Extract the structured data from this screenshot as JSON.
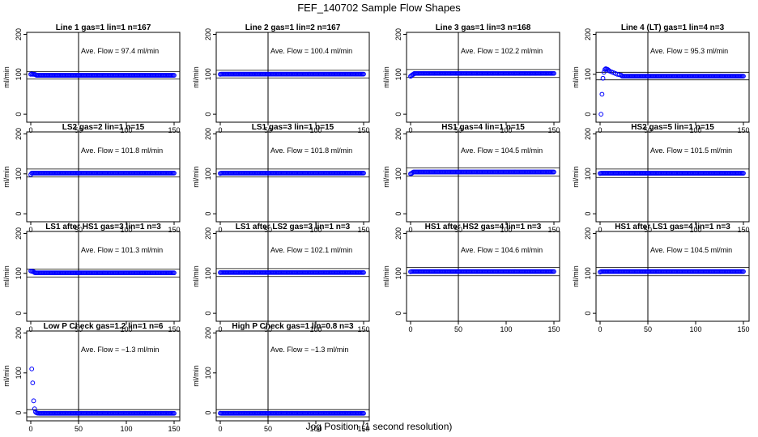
{
  "figure": {
    "title": "FEF_140702  Sample Flow Shapes",
    "xlabel": "Jog Position (1 second resolution)",
    "point_color": "#0000ff"
  },
  "chart_data": [
    {
      "type": "scatter",
      "title": "Line 1 gas=1 lin=1 n=167",
      "ylabel": "ml/min",
      "annotation": "Ave. Flow = 97.4  ml/min",
      "xlim": [
        0,
        150
      ],
      "ylim": [
        -20,
        205
      ],
      "xticks": [
        0,
        50,
        100,
        150
      ],
      "yticks": [
        0,
        100,
        200
      ],
      "ref_hline": [
        88,
        107
      ],
      "ref_vline": 50,
      "shape": "flat",
      "level": 97.4,
      "points": [
        [
          0,
          100
        ],
        [
          1,
          101
        ],
        [
          2,
          100
        ],
        [
          3,
          100
        ],
        [
          4,
          100
        ],
        [
          5,
          99
        ],
        [
          150,
          97
        ]
      ]
    },
    {
      "type": "scatter",
      "title": "Line 2 gas=1 lin=2 n=167",
      "ylabel": "ml/min",
      "annotation": "Ave. Flow = 100.4  ml/min",
      "xlim": [
        0,
        150
      ],
      "ylim": [
        -20,
        205
      ],
      "xticks": [
        0,
        50,
        100,
        150
      ],
      "yticks": [
        0,
        100,
        200
      ],
      "ref_hline": [
        91,
        110
      ],
      "ref_vline": 50,
      "shape": "flat",
      "level": 100.4,
      "points": [
        [
          0,
          100
        ],
        [
          150,
          100
        ]
      ]
    },
    {
      "type": "scatter",
      "title": "Line 3 gas=1 lin=3 n=168",
      "ylabel": "ml/min",
      "annotation": "Ave. Flow = 102.2  ml/min",
      "xlim": [
        0,
        150
      ],
      "ylim": [
        -20,
        205
      ],
      "xticks": [
        0,
        50,
        100,
        150
      ],
      "yticks": [
        0,
        100,
        200
      ],
      "ref_hline": [
        92,
        112
      ],
      "ref_vline": 50,
      "shape": "flat",
      "level": 102.2,
      "points": [
        [
          0,
          95
        ],
        [
          1,
          97
        ],
        [
          2,
          99
        ],
        [
          3,
          100
        ],
        [
          150,
          103
        ]
      ]
    },
    {
      "type": "scatter",
      "title": "Line 4 (LT) gas=1 lin=4 n=3",
      "ylabel": "ml/min",
      "annotation": "Ave. Flow = 95.3  ml/min",
      "xlim": [
        0,
        150
      ],
      "ylim": [
        -20,
        205
      ],
      "xticks": [
        0,
        50,
        100,
        150
      ],
      "yticks": [
        0,
        100,
        200
      ],
      "ref_hline": [
        86,
        105
      ],
      "ref_vline": 50,
      "shape": "flat",
      "level": 95.3,
      "points": [
        [
          1,
          0
        ],
        [
          2,
          50
        ],
        [
          3,
          90
        ],
        [
          4,
          105
        ],
        [
          5,
          112
        ],
        [
          6,
          114
        ],
        [
          7,
          113
        ],
        [
          8,
          112
        ],
        [
          9,
          110
        ],
        [
          10,
          108
        ],
        [
          12,
          106
        ],
        [
          14,
          104
        ],
        [
          16,
          102
        ],
        [
          18,
          100
        ],
        [
          20,
          99
        ],
        [
          22,
          98
        ],
        [
          150,
          95
        ]
      ]
    },
    {
      "type": "scatter",
      "title": "LS2 gas=2 lin=1 n=15",
      "ylabel": "ml/min",
      "annotation": "Ave. Flow = 101.8  ml/min",
      "xlim": [
        0,
        150
      ],
      "ylim": [
        -20,
        205
      ],
      "xticks": [
        0,
        50,
        100,
        150
      ],
      "yticks": [
        0,
        100,
        200
      ],
      "ref_hline": [
        92,
        112
      ],
      "ref_vline": 50,
      "shape": "flat",
      "level": 101.8,
      "points": [
        [
          0,
          98
        ],
        [
          150,
          102
        ]
      ]
    },
    {
      "type": "scatter",
      "title": "LS1 gas=3 lin=1 n=15",
      "ylabel": "ml/min",
      "annotation": "Ave. Flow = 101.8  ml/min",
      "xlim": [
        0,
        150
      ],
      "ylim": [
        -20,
        205
      ],
      "xticks": [
        0,
        50,
        100,
        150
      ],
      "yticks": [
        0,
        100,
        200
      ],
      "ref_hline": [
        92,
        112
      ],
      "ref_vline": 50,
      "shape": "flat",
      "level": 101.8,
      "points": [
        [
          0,
          101
        ],
        [
          150,
          102
        ]
      ]
    },
    {
      "type": "scatter",
      "title": "HS1 gas=4 lin=1 n=15",
      "ylabel": "ml/min",
      "annotation": "Ave. Flow = 104.5  ml/min",
      "xlim": [
        0,
        150
      ],
      "ylim": [
        -20,
        205
      ],
      "xticks": [
        0,
        50,
        100,
        150
      ],
      "yticks": [
        0,
        100,
        200
      ],
      "ref_hline": [
        94,
        115
      ],
      "ref_vline": 50,
      "shape": "flat",
      "level": 104.5,
      "points": [
        [
          0,
          100
        ],
        [
          1,
          101
        ],
        [
          2,
          103
        ],
        [
          150,
          105
        ]
      ]
    },
    {
      "type": "scatter",
      "title": "HS2 gas=5 lin=1 n=15",
      "ylabel": "ml/min",
      "annotation": "Ave. Flow = 101.5  ml/min",
      "xlim": [
        0,
        150
      ],
      "ylim": [
        -20,
        205
      ],
      "xticks": [
        0,
        50,
        100,
        150
      ],
      "yticks": [
        0,
        100,
        200
      ],
      "ref_hline": [
        91,
        112
      ],
      "ref_vline": 50,
      "shape": "flat",
      "level": 101.5,
      "points": [
        [
          0,
          101
        ],
        [
          150,
          101
        ]
      ]
    },
    {
      "type": "scatter",
      "title": "LS1 after HS1 gas=3 lin=1 n=3",
      "ylabel": "ml/min",
      "annotation": "Ave. Flow = 101.3  ml/min",
      "xlim": [
        0,
        150
      ],
      "ylim": [
        -20,
        205
      ],
      "xticks": [
        0,
        50,
        100,
        150
      ],
      "yticks": [
        0,
        100,
        200
      ],
      "ref_hline": [
        91,
        111
      ],
      "ref_vline": 50,
      "shape": "flat",
      "level": 101.3,
      "points": [
        [
          0,
          106
        ],
        [
          1,
          105
        ],
        [
          2,
          105
        ],
        [
          3,
          104
        ],
        [
          4,
          102
        ],
        [
          150,
          101
        ]
      ]
    },
    {
      "type": "scatter",
      "title": "LS1 after LS2 gas=3 lin=1 n=3",
      "ylabel": "ml/min",
      "annotation": "Ave. Flow = 102.1  ml/min",
      "xlim": [
        0,
        150
      ],
      "ylim": [
        -20,
        205
      ],
      "xticks": [
        0,
        50,
        100,
        150
      ],
      "yticks": [
        0,
        100,
        200
      ],
      "ref_hline": [
        92,
        112
      ],
      "ref_vline": 50,
      "shape": "flat",
      "level": 102.1,
      "points": [
        [
          0,
          102
        ],
        [
          150,
          102
        ]
      ]
    },
    {
      "type": "scatter",
      "title": "HS1 after HS2 gas=4 lin=1 n=3",
      "ylabel": "ml/min",
      "annotation": "Ave. Flow = 104.6  ml/min",
      "xlim": [
        0,
        150
      ],
      "ylim": [
        -20,
        205
      ],
      "xticks": [
        0,
        50,
        100,
        150
      ],
      "yticks": [
        0,
        100,
        200
      ],
      "ref_hline": [
        94,
        115
      ],
      "ref_vline": 50,
      "shape": "flat",
      "level": 104.6,
      "points": [
        [
          0,
          104
        ],
        [
          150,
          105
        ]
      ]
    },
    {
      "type": "scatter",
      "title": "HS1 after LS1 gas=4 lin=1 n=3",
      "ylabel": "ml/min",
      "annotation": "Ave. Flow = 104.5  ml/min",
      "xlim": [
        0,
        150
      ],
      "ylim": [
        -20,
        205
      ],
      "xticks": [
        0,
        50,
        100,
        150
      ],
      "yticks": [
        0,
        100,
        200
      ],
      "ref_hline": [
        94,
        115
      ],
      "ref_vline": 50,
      "shape": "flat",
      "level": 104.5,
      "points": [
        [
          0,
          103
        ],
        [
          150,
          104
        ]
      ]
    },
    {
      "type": "scatter",
      "title": "Low P Check gas=1.2 lin=1 n=6",
      "ylabel": "ml/min",
      "annotation": "Ave. Flow = −1.3  ml/min",
      "xlim": [
        0,
        150
      ],
      "ylim": [
        -20,
        205
      ],
      "xticks": [
        0,
        50,
        100,
        150
      ],
      "yticks": [
        0,
        100,
        200
      ],
      "ref_hline": [
        -10,
        8
      ],
      "ref_vline": 50,
      "shape": "flat",
      "level": -1.3,
      "points": [
        [
          1,
          110
        ],
        [
          2,
          75
        ],
        [
          3,
          30
        ],
        [
          4,
          10
        ],
        [
          5,
          2
        ],
        [
          6,
          0
        ],
        [
          7,
          -1
        ],
        [
          8,
          -1
        ],
        [
          150,
          -1
        ]
      ]
    },
    {
      "type": "scatter",
      "title": "High P Check gas=1 lin=0.8 n=3",
      "ylabel": "ml/min",
      "annotation": "Ave. Flow = −1.3  ml/min",
      "xlim": [
        0,
        150
      ],
      "ylim": [
        -20,
        205
      ],
      "xticks": [
        0,
        50,
        100,
        150
      ],
      "yticks": [
        0,
        100,
        200
      ],
      "ref_hline": [
        -10,
        8
      ],
      "ref_vline": 50,
      "shape": "flat",
      "level": -1.3,
      "points": [
        [
          0,
          -1
        ],
        [
          150,
          -1
        ]
      ]
    }
  ]
}
